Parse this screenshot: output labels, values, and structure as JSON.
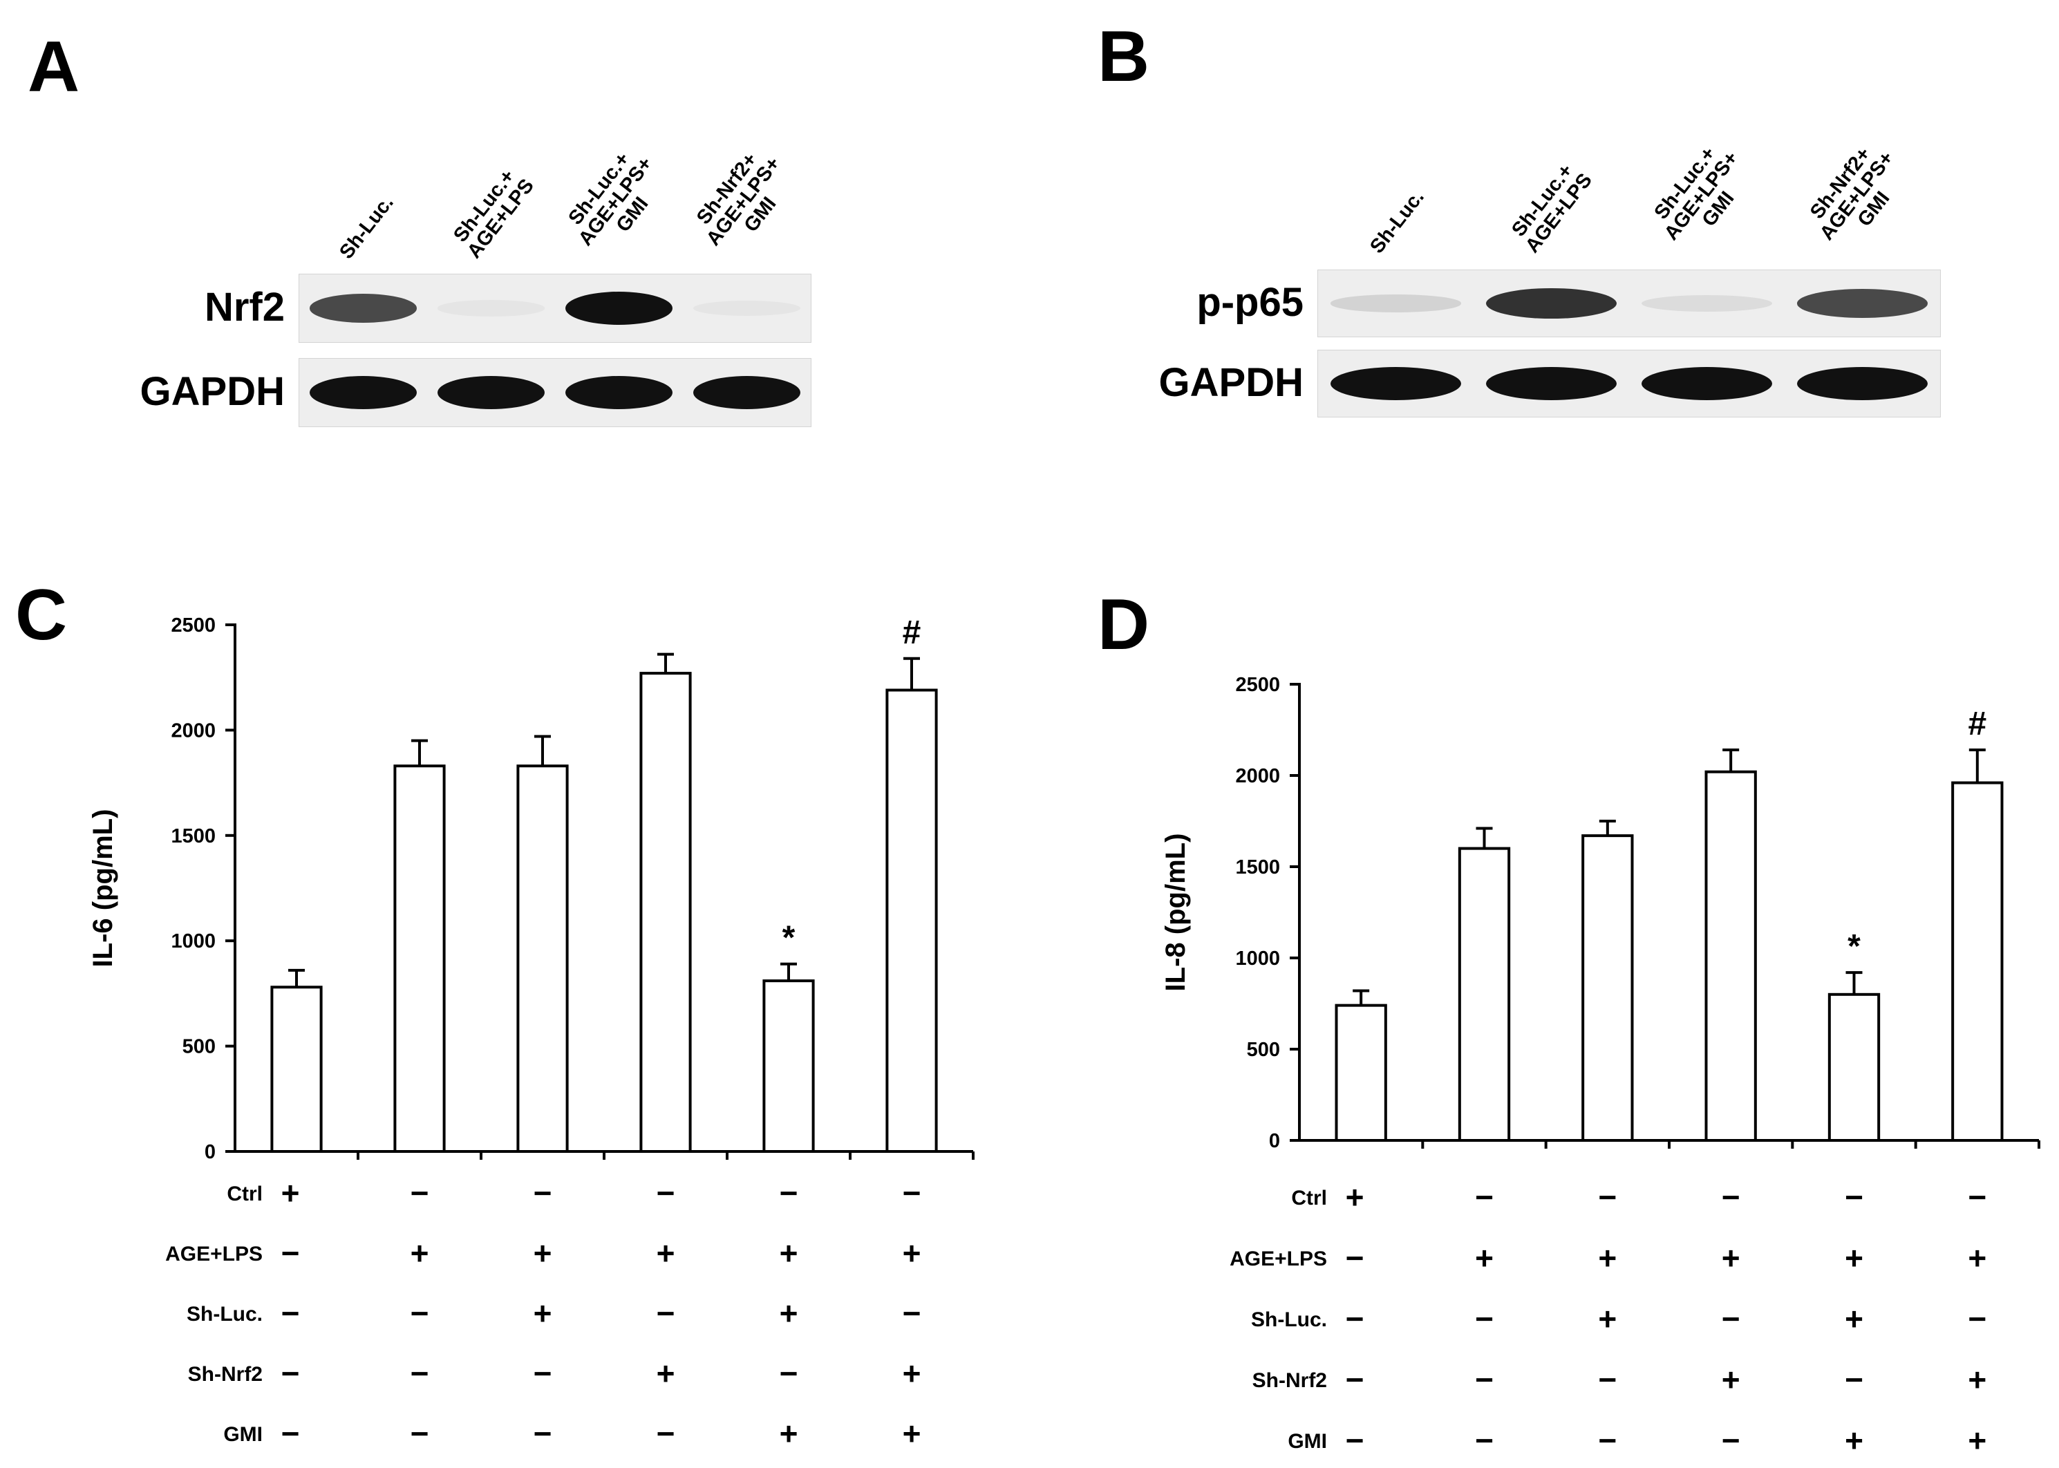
{
  "panels": {
    "A": {
      "letter": "A",
      "lanes": [
        {
          "lines": [
            "Sh-Luc."
          ]
        },
        {
          "lines": [
            "Sh-Luc.+",
            "AGE+LPS"
          ]
        },
        {
          "lines": [
            "Sh-Luc.+",
            "AGE+LPS+",
            "GMI"
          ]
        },
        {
          "lines": [
            "Sh-Nrf2+",
            "AGE+LPS+",
            "GMI"
          ]
        }
      ],
      "rows": [
        {
          "label": "Nrf2",
          "intensities": [
            0.75,
            0.04,
            1.0,
            0.02
          ]
        },
        {
          "label": "GAPDH",
          "intensities": [
            1.0,
            1.0,
            1.0,
            1.0
          ]
        }
      ]
    },
    "B": {
      "letter": "B",
      "lanes": [
        {
          "lines": [
            "Sh-Luc."
          ]
        },
        {
          "lines": [
            "Sh-Luc.+",
            "AGE+LPS"
          ]
        },
        {
          "lines": [
            "Sh-Luc.+",
            "AGE+LPS+",
            "GMI"
          ]
        },
        {
          "lines": [
            "Sh-Nrf2+",
            "AGE+LPS+",
            "GMI"
          ]
        }
      ],
      "rows": [
        {
          "label": "p-p65",
          "intensities": [
            0.12,
            0.85,
            0.08,
            0.75
          ]
        },
        {
          "label": "GAPDH",
          "intensities": [
            1.0,
            1.0,
            1.0,
            1.0
          ]
        }
      ]
    },
    "C": {
      "letter": "C"
    },
    "D": {
      "letter": "D"
    }
  },
  "chart_data": [
    {
      "panel": "C",
      "type": "bar",
      "ylabel": "IL-6 (pg/mL)",
      "ylim": [
        0,
        2500
      ],
      "yticks": [
        0,
        500,
        1000,
        1500,
        2000,
        2500
      ],
      "values": [
        780,
        1830,
        1830,
        2270,
        810,
        2190
      ],
      "errors": [
        80,
        120,
        140,
        90,
        80,
        150
      ],
      "annotations": [
        "",
        "",
        "",
        "",
        "*",
        "#"
      ],
      "conditions": [
        {
          "name": "Ctrl",
          "signs": [
            "+",
            "−",
            "−",
            "−",
            "−",
            "−"
          ]
        },
        {
          "name": "AGE+LPS",
          "signs": [
            "−",
            "+",
            "+",
            "+",
            "+",
            "+"
          ]
        },
        {
          "name": "Sh-Luc.",
          "signs": [
            "−",
            "−",
            "+",
            "−",
            "+",
            "−"
          ]
        },
        {
          "name": "Sh-Nrf2",
          "signs": [
            "−",
            "−",
            "−",
            "+",
            "−",
            "+"
          ]
        },
        {
          "name": "GMI",
          "signs": [
            "−",
            "−",
            "−",
            "−",
            "+",
            "+"
          ]
        }
      ]
    },
    {
      "panel": "D",
      "type": "bar",
      "ylabel": "IL-8 (pg/mL)",
      "ylim": [
        0,
        2500
      ],
      "yticks": [
        0,
        500,
        1000,
        1500,
        2000,
        2500
      ],
      "values": [
        740,
        1600,
        1670,
        2020,
        800,
        1960
      ],
      "errors": [
        80,
        110,
        80,
        120,
        120,
        180
      ],
      "annotations": [
        "",
        "",
        "",
        "",
        "*",
        "#"
      ],
      "conditions": [
        {
          "name": "Ctrl",
          "signs": [
            "+",
            "−",
            "−",
            "−",
            "−",
            "−"
          ]
        },
        {
          "name": "AGE+LPS",
          "signs": [
            "−",
            "+",
            "+",
            "+",
            "+",
            "+"
          ]
        },
        {
          "name": "Sh-Luc.",
          "signs": [
            "−",
            "−",
            "+",
            "−",
            "+",
            "−"
          ]
        },
        {
          "name": "Sh-Nrf2",
          "signs": [
            "−",
            "−",
            "−",
            "+",
            "−",
            "+"
          ]
        },
        {
          "name": "GMI",
          "signs": [
            "−",
            "−",
            "−",
            "−",
            "+",
            "+"
          ]
        }
      ]
    }
  ]
}
